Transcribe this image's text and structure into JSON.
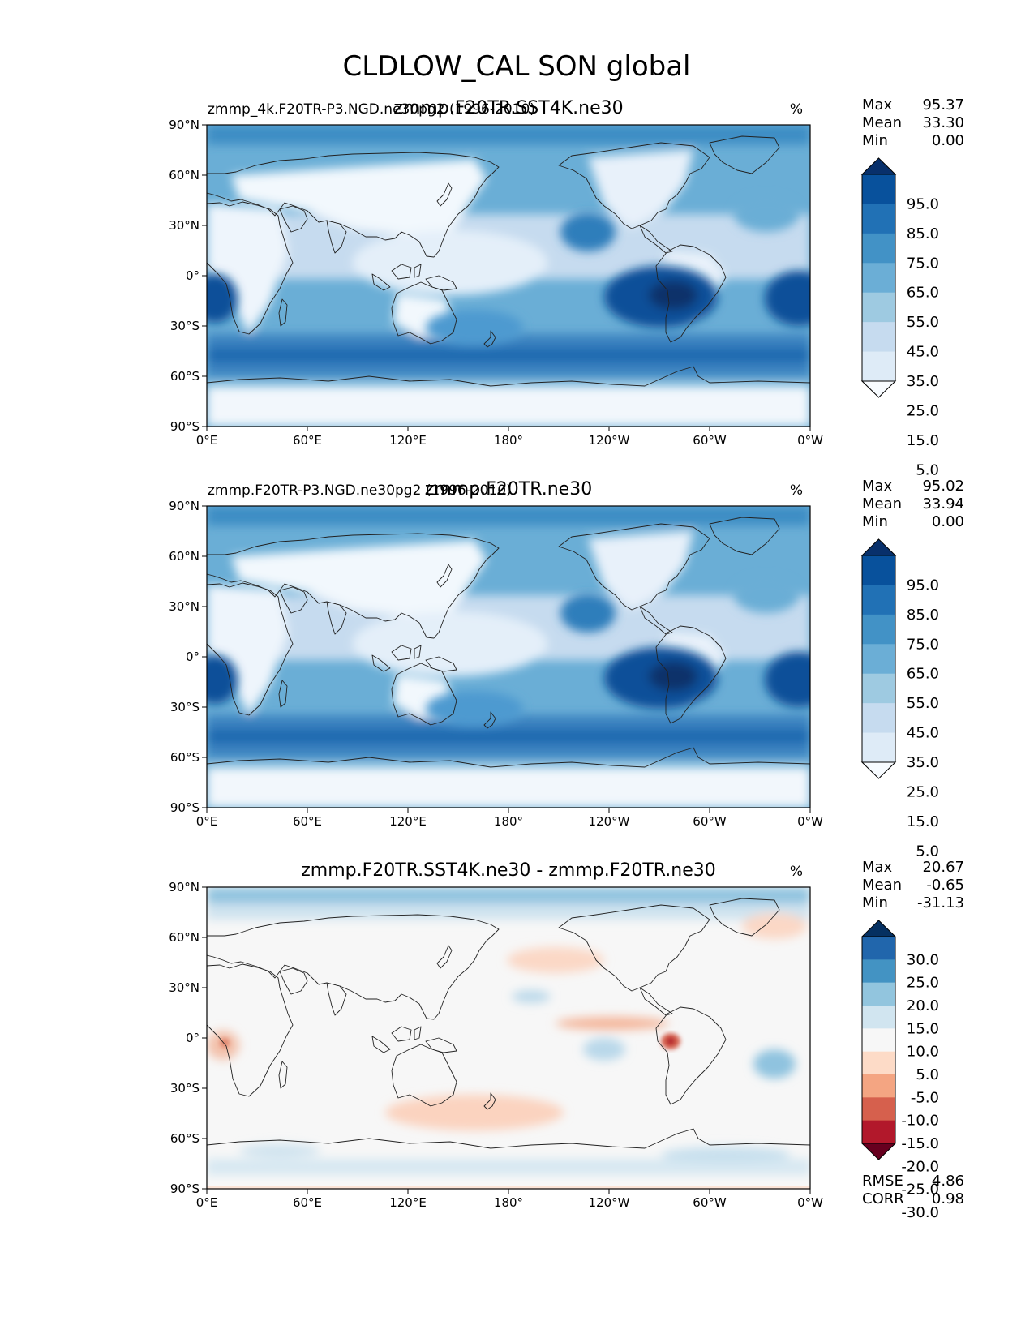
{
  "title": "CLDLOW_CAL SON global",
  "axes": {
    "lon_ticks": [
      "0°E",
      "60°E",
      "120°E",
      "180°",
      "120°W",
      "60°W",
      "0°W"
    ],
    "lat_ticks": [
      "90°N",
      "60°N",
      "30°N",
      "0°",
      "30°S",
      "60°S",
      "90°S"
    ]
  },
  "colors": {
    "blues": [
      "#f7fbff",
      "#deebf7",
      "#c6dbef",
      "#9ecae1",
      "#6baed6",
      "#4292c6",
      "#2171b5",
      "#08519c",
      "#08306b"
    ],
    "diverging": [
      "#67001f",
      "#b2182b",
      "#d6604d",
      "#f4a582",
      "#fddbc7",
      "#f7f7f7",
      "#d1e5f0",
      "#92c5de",
      "#4393c3",
      "#2166ac",
      "#053061"
    ]
  },
  "panels": [
    {
      "left_title": "zmmp_4k.F20TR-P3.NGD.ne30pg2 (1996-2010)",
      "center_title": "zmmp.F20TR.SST4K.ne30",
      "units": "%",
      "stats": [
        {
          "label": "Max",
          "value": "95.37"
        },
        {
          "label": "Mean",
          "value": "33.30"
        },
        {
          "label": "Min",
          "value": "0.00"
        }
      ],
      "colorbar": {
        "labels": [
          "95.0",
          "85.0",
          "75.0",
          "65.0",
          "55.0",
          "45.0",
          "35.0",
          "25.0",
          "15.0",
          "5.0"
        ]
      },
      "chart_data": {
        "type": "filled-contour-map",
        "variable": "CLDLOW_CAL",
        "season": "SON",
        "units": "%",
        "max": 95.37,
        "mean": 33.3,
        "min": 0.0,
        "levels": [
          5,
          15,
          25,
          35,
          45,
          55,
          65,
          75,
          85,
          95
        ],
        "xlim": [
          0,
          360
        ],
        "ylim": [
          -90,
          90
        ]
      }
    },
    {
      "left_title": "zmmp.F20TR-P3.NGD.ne30pg2 (1996-2010)",
      "center_title": "zmmp.F20TR.ne30",
      "units": "%",
      "stats": [
        {
          "label": "Max",
          "value": "95.02"
        },
        {
          "label": "Mean",
          "value": "33.94"
        },
        {
          "label": "Min",
          "value": "0.00"
        }
      ],
      "colorbar": {
        "labels": [
          "95.0",
          "85.0",
          "75.0",
          "65.0",
          "55.0",
          "45.0",
          "35.0",
          "25.0",
          "15.0",
          "5.0"
        ]
      },
      "chart_data": {
        "type": "filled-contour-map",
        "variable": "CLDLOW_CAL",
        "season": "SON",
        "units": "%",
        "max": 95.02,
        "mean": 33.94,
        "min": 0.0,
        "levels": [
          5,
          15,
          25,
          35,
          45,
          55,
          65,
          75,
          85,
          95
        ],
        "xlim": [
          0,
          360
        ],
        "ylim": [
          -90,
          90
        ]
      }
    },
    {
      "left_title": "",
      "center_title": "zmmp.F20TR.SST4K.ne30 - zmmp.F20TR.ne30",
      "units": "%",
      "stats": [
        {
          "label": "Max",
          "value": "20.67"
        },
        {
          "label": "Mean",
          "value": "-0.65"
        },
        {
          "label": "Min",
          "value": "-31.13"
        }
      ],
      "colorbar": {
        "labels": [
          "30.0",
          "25.0",
          "20.0",
          "15.0",
          "10.0",
          "5.0",
          "-5.0",
          "-10.0",
          "-15.0",
          "-20.0",
          "-25.0",
          "-30.0"
        ]
      },
      "metrics": [
        {
          "label": "RMSE",
          "value": "4.86"
        },
        {
          "label": "CORR",
          "value": "0.98"
        }
      ],
      "chart_data": {
        "type": "filled-contour-map-difference",
        "units": "%",
        "max": 20.67,
        "mean": -0.65,
        "min": -31.13,
        "rmse": 4.86,
        "corr": 0.98,
        "levels": [
          -30,
          -25,
          -20,
          -15,
          -10,
          -5,
          5,
          10,
          15,
          20,
          25,
          30
        ],
        "xlim": [
          0,
          360
        ],
        "ylim": [
          -90,
          90
        ]
      }
    }
  ]
}
